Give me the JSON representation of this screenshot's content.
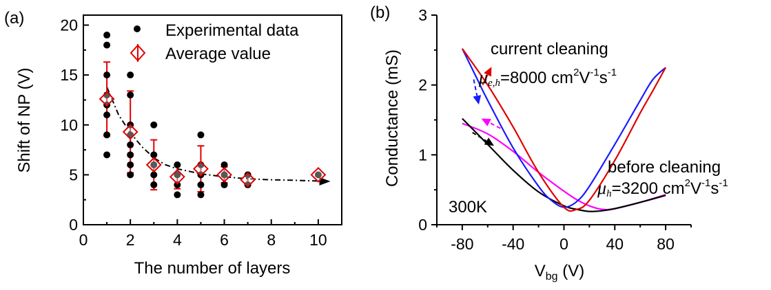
{
  "chart_data": [
    {
      "panel": "(a)",
      "type": "scatter",
      "xlabel": "The number of layers",
      "ylabel": "Shift of NP (V)",
      "xlim": [
        0,
        11
      ],
      "ylim": [
        0,
        21
      ],
      "xticks": [
        "0",
        "2",
        "4",
        "6",
        "8",
        "10"
      ],
      "yticks": [
        "0",
        "5",
        "10",
        "15",
        "20"
      ],
      "legend": {
        "position": "top-right",
        "entries": [
          "Experimental data",
          "Average value"
        ]
      },
      "series": [
        {
          "name": "Experimental data",
          "color": "#000000",
          "marker": "filled-circle",
          "points": [
            [
              1,
              19
            ],
            [
              1,
              18
            ],
            [
              1,
              15
            ],
            [
              1,
              13
            ],
            [
              1,
              12
            ],
            [
              1,
              11
            ],
            [
              1,
              9
            ],
            [
              1,
              7
            ],
            [
              2,
              15
            ],
            [
              2,
              13
            ],
            [
              2,
              10
            ],
            [
              2,
              9
            ],
            [
              2,
              8
            ],
            [
              2,
              7
            ],
            [
              2,
              6
            ],
            [
              2,
              5
            ],
            [
              3,
              10
            ],
            [
              3,
              7
            ],
            [
              3,
              6
            ],
            [
              3,
              5
            ],
            [
              3,
              4
            ],
            [
              4,
              6
            ],
            [
              4,
              5
            ],
            [
              4,
              4
            ],
            [
              4,
              3
            ],
            [
              5,
              9
            ],
            [
              5,
              6
            ],
            [
              5,
              5
            ],
            [
              5,
              4
            ],
            [
              5,
              3
            ],
            [
              6,
              6
            ],
            [
              6,
              5
            ],
            [
              6,
              4
            ],
            [
              7,
              5
            ],
            [
              7,
              4
            ],
            [
              10,
              5
            ]
          ]
        },
        {
          "name": "Average value",
          "color": "#e00000",
          "marker": "diamond-with-errorbar",
          "points": [
            {
              "x": 1,
              "y": 12.6,
              "err": 3.7
            },
            {
              "x": 2,
              "y": 9.3,
              "err": 4.1
            },
            {
              "x": 3,
              "y": 6.0,
              "err": 2.5
            },
            {
              "x": 4,
              "y": 4.8,
              "err": 1.2
            },
            {
              "x": 5,
              "y": 5.6,
              "err": 2.3
            },
            {
              "x": 6,
              "y": 5.0,
              "err": 0.8
            },
            {
              "x": 7,
              "y": 4.5,
              "err": 0.5
            },
            {
              "x": 10,
              "y": 5.0,
              "err": 0
            }
          ]
        },
        {
          "name": "",
          "color": "#000000",
          "style": "dash-dot",
          "arrow": true,
          "points": [
            [
              1,
              13.8
            ],
            [
              1.5,
              11.0
            ],
            [
              2,
              9.2
            ],
            [
              2.5,
              7.8
            ],
            [
              3,
              6.7
            ],
            [
              3.5,
              6.0
            ],
            [
              4,
              5.6
            ],
            [
              5,
              5.1
            ],
            [
              6,
              4.8
            ],
            [
              7,
              4.6
            ],
            [
              8,
              4.5
            ],
            [
              9,
              4.45
            ],
            [
              10.4,
              4.35
            ]
          ]
        }
      ]
    },
    {
      "panel": "(b)",
      "type": "line",
      "xlabel": "V",
      "xlabel_sub": "bg",
      "xlabel_unit": " (V)",
      "ylabel": "Conductance (mS)",
      "xlim": [
        -100,
        100
      ],
      "ylim": [
        0,
        3
      ],
      "xticks": [
        "-80",
        "-40",
        "0",
        "40",
        "80"
      ],
      "yticks": [
        "0",
        "1",
        "2",
        "3"
      ],
      "series": [
        {
          "name": "",
          "color": "#ff00ff",
          "points": [
            [
              -80,
              1.45
            ],
            [
              -60,
              1.3
            ],
            [
              -40,
              1.05
            ],
            [
              -20,
              0.75
            ],
            [
              0,
              0.48
            ],
            [
              10,
              0.36
            ],
            [
              20,
              0.27
            ],
            [
              30,
              0.22
            ],
            [
              40,
              0.23
            ],
            [
              60,
              0.32
            ],
            [
              80,
              0.43
            ]
          ]
        },
        {
          "name": "",
          "color": "#000000",
          "points": [
            [
              -80,
              1.52
            ],
            [
              -60,
              1.15
            ],
            [
              -40,
              0.78
            ],
            [
              -20,
              0.47
            ],
            [
              0,
              0.27
            ],
            [
              10,
              0.22
            ],
            [
              20,
              0.19
            ],
            [
              30,
              0.2
            ],
            [
              40,
              0.23
            ],
            [
              60,
              0.32
            ],
            [
              80,
              0.42
            ]
          ]
        },
        {
          "name": "",
          "color": "#1a1aff",
          "points": [
            [
              -80,
              2.52
            ],
            [
              -70,
              2.15
            ],
            [
              -60,
              1.78
            ],
            [
              -40,
              1.1
            ],
            [
              -20,
              0.55
            ],
            [
              -10,
              0.35
            ],
            [
              0,
              0.25
            ],
            [
              10,
              0.33
            ],
            [
              20,
              0.55
            ],
            [
              40,
              1.15
            ],
            [
              60,
              1.78
            ],
            [
              70,
              2.08
            ],
            [
              80,
              2.25
            ]
          ]
        },
        {
          "name": "",
          "color": "#e00000",
          "points": [
            [
              -80,
              2.52
            ],
            [
              -60,
              2.0
            ],
            [
              -40,
              1.4
            ],
            [
              -20,
              0.75
            ],
            [
              0,
              0.25
            ],
            [
              10,
              0.22
            ],
            [
              20,
              0.35
            ],
            [
              40,
              0.92
            ],
            [
              60,
              1.6
            ],
            [
              70,
              1.92
            ],
            [
              80,
              2.25
            ]
          ]
        }
      ],
      "arrows": [
        {
          "color": "#1a1aff",
          "style": "dashed",
          "from": [
            -71,
            2.08
          ],
          "to": [
            -67,
            1.72
          ]
        },
        {
          "color": "#ff00ff",
          "style": "dashed",
          "from": [
            -50,
            1.38
          ],
          "to": [
            -65,
            1.52
          ]
        },
        {
          "color": "#000000",
          "style": "dashed",
          "from": [
            -72,
            1.32
          ],
          "to": [
            -55,
            1.13
          ]
        },
        {
          "color": "#e00000",
          "style": "solid",
          "from": [
            -64,
            2.0
          ],
          "to": [
            -57,
            2.26
          ]
        }
      ],
      "annotations": {
        "current_cleaning": "current cleaning",
        "mu_eh_symbol": "μ",
        "mu_eh_sub": "e,h",
        "mu_eh_value": "=8000 cm",
        "before_cleaning": "before cleaning",
        "mu_h_symbol": "μ",
        "mu_h_sub": "h",
        "mu_h_value": "=3200 cm",
        "unit_sup_2": "2",
        "unit_V": "V",
        "unit_sup_m1": "-1",
        "unit_s": "s",
        "temperature": "300K"
      }
    }
  ]
}
